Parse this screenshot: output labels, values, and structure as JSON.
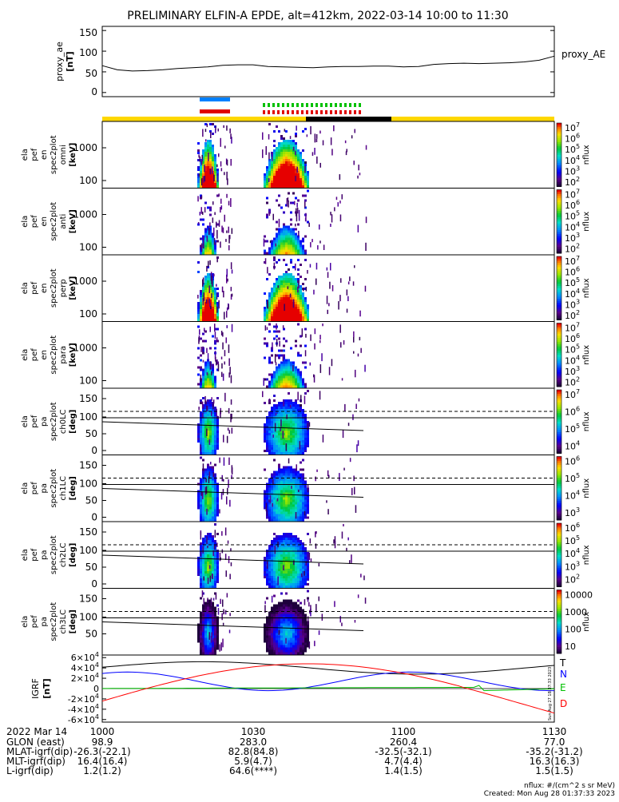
{
  "title": "PRELIMINARY ELFIN-A EPDE, alt=412km, 2022-03-14 10:00 to 11:30",
  "proxy_panel": {
    "ylabel": "proxy_ae [nT]",
    "ylabel_line1": "proxy_ae",
    "ylabel_line2": "[nT]",
    "yticks": [
      "150",
      "100",
      "50",
      "0"
    ],
    "ytick_values": [
      150,
      100,
      50,
      0
    ],
    "ylim": [
      -10,
      160
    ],
    "legend": "proxy_AE"
  },
  "chart_data": [
    {
      "type": "line",
      "name": "proxy_ae",
      "xlim_minutes": [
        0,
        90
      ],
      "x": [
        0,
        3,
        6,
        9,
        12,
        15,
        18,
        21,
        24,
        27,
        30,
        33,
        36,
        39,
        42,
        45,
        48,
        51,
        54,
        57,
        60,
        63,
        66,
        69,
        72,
        75,
        78,
        81,
        84,
        87,
        90
      ],
      "y": [
        65,
        55,
        52,
        53,
        55,
        58,
        60,
        62,
        66,
        67,
        67,
        63,
        62,
        61,
        60,
        62,
        63,
        63,
        64,
        64,
        62,
        63,
        68,
        70,
        71,
        70,
        71,
        72,
        74,
        78,
        88
      ],
      "ylim": [
        -10,
        160
      ]
    },
    {
      "type": "heatmap",
      "panels": [
        {
          "labels": [
            "ela",
            "pef",
            "en",
            "spec2plot",
            "omni",
            "[keV]"
          ],
          "yticks": [
            "1000",
            "100"
          ],
          "colorbar_ticks": [
            "10^7",
            "10^6",
            "10^5",
            "10^4",
            "10^3",
            "10^2"
          ],
          "colorbar_label": "nflux"
        },
        {
          "labels": [
            "ela",
            "pef",
            "en",
            "spec2plot",
            "anti",
            "[keV]"
          ],
          "yticks": [
            "1000",
            "100"
          ],
          "colorbar_ticks": [
            "10^7",
            "10^6",
            "10^5",
            "10^4",
            "10^3",
            "10^2"
          ],
          "colorbar_label": "nflux"
        },
        {
          "labels": [
            "ela",
            "pef",
            "en",
            "spec2plot",
            "perp",
            "[keV]"
          ],
          "yticks": [
            "1000",
            "100"
          ],
          "colorbar_ticks": [
            "10^7",
            "10^6",
            "10^5",
            "10^4",
            "10^3",
            "10^2"
          ],
          "colorbar_label": "nflux"
        },
        {
          "labels": [
            "ela",
            "pef",
            "en",
            "spec2plot",
            "para",
            "[keV]"
          ],
          "yticks": [
            "1000",
            "100"
          ],
          "colorbar_ticks": [
            "10^7",
            "10^6",
            "10^5",
            "10^4",
            "10^3",
            "10^2"
          ],
          "colorbar_label": "nflux"
        },
        {
          "labels": [
            "ela",
            "pef",
            "pa",
            "spec2plot",
            "ch0LC",
            "[deg]"
          ],
          "yticks": [
            "150",
            "100",
            "50",
            "0"
          ],
          "colorbar_ticks": [
            "10^7",
            "10^6",
            "10^5",
            "10^4"
          ],
          "colorbar_label": "nflux"
        },
        {
          "labels": [
            "ela",
            "pef",
            "pa",
            "spec2plot",
            "ch1LC",
            "[deg]"
          ],
          "yticks": [
            "150",
            "100",
            "50",
            "0"
          ],
          "colorbar_ticks": [
            "10^6",
            "10^5",
            "10^4",
            "10^3"
          ],
          "colorbar_label": "nflux"
        },
        {
          "labels": [
            "ela",
            "pef",
            "pa",
            "spec2plot",
            "ch2LC",
            "[deg]"
          ],
          "yticks": [
            "150",
            "100",
            "50",
            "0"
          ],
          "colorbar_ticks": [
            "10^6",
            "10^5",
            "10^4",
            "10^3",
            "10^2"
          ],
          "colorbar_label": "nflux"
        },
        {
          "labels": [
            "ela",
            "pef",
            "pa",
            "spec2plot",
            "ch3LC",
            "[deg]"
          ],
          "yticks": [
            "150",
            "100",
            "50"
          ],
          "colorbar_ticks": [
            "10000",
            "1000",
            "100",
            "10"
          ],
          "colorbar_label": "nflux"
        }
      ]
    },
    {
      "type": "line",
      "name": "IGRF",
      "ylabel": "IGRF [nT]",
      "yticks": [
        "6x10^4",
        "4x10^4",
        "2x10^4",
        "0",
        "-2x10^4",
        "-4x10^4",
        "-6x10^4"
      ],
      "ylim": [
        -65000,
        65000
      ],
      "legend": [
        {
          "name": "T",
          "color": "#000000"
        },
        {
          "name": "N",
          "color": "#0000ff"
        },
        {
          "name": "E",
          "color": "#00c000"
        },
        {
          "name": "D",
          "color": "#ff0000"
        }
      ]
    }
  ],
  "xaxis": {
    "date_label": "2022 Mar 14",
    "ticks": [
      "1000",
      "1030",
      "1100",
      "1130"
    ]
  },
  "ephem_rows": [
    {
      "label": "GLON (east)",
      "values": [
        "98.9",
        "283.0",
        "260.4",
        "77.0"
      ]
    },
    {
      "label": "MLAT-igrf(dip)",
      "values": [
        "-26.3(-22.1)",
        "82.8(84.8)",
        "-32.5(-32.1)",
        "-35.2(-31.2)"
      ]
    },
    {
      "label": "MLT-igrf(dip)",
      "values": [
        "16.4(16.4)",
        "5.9(4.7)",
        "4.7(4.4)",
        "16.3(16.3)"
      ]
    },
    {
      "label": "L-igrf(dip)",
      "values": [
        "1.2(1.2)",
        "64.6(****)",
        "1.4(1.5)",
        "1.5(1.5)"
      ]
    }
  ],
  "footer": {
    "units": "nflux: #/(cm^2 s sr MeV)",
    "created": "Created: Mon Aug 28 01:37:33 2023"
  },
  "vertical_stamp": "Sun Aug 27 18:37:33 2023",
  "colors": {
    "science_zone_blue": "#0080ff",
    "science_zone_red": "#e00000",
    "status_yellow": "#ffd700",
    "status_black": "#000000",
    "dot_green": "#00c000"
  }
}
